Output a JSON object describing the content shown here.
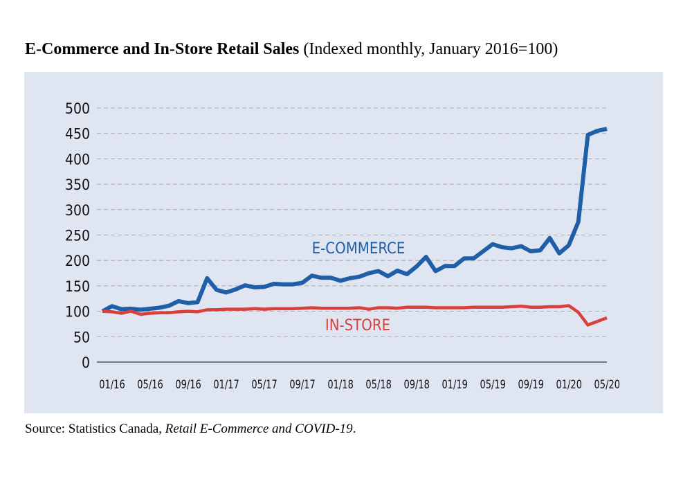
{
  "chart_data": {
    "type": "line",
    "title": "E-Commerce and In-Store Retail Sales",
    "subtitle": "(Indexed monthly, January 2016=100)",
    "source": [
      "Source: Statistics Canada, ",
      "Retail E-Commerce and COVID-19",
      "."
    ],
    "categories": [
      "01/16",
      null,
      null,
      null,
      "05/16",
      null,
      null,
      null,
      "09/16",
      null,
      null,
      null,
      "01/17",
      null,
      null,
      null,
      "05/17",
      null,
      null,
      null,
      "09/17",
      null,
      null,
      null,
      "01/18",
      null,
      null,
      null,
      "05/18",
      null,
      null,
      null,
      "09/18",
      null,
      null,
      null,
      "01/19",
      null,
      null,
      null,
      "05/19",
      null,
      null,
      null,
      "09/19",
      null,
      null,
      null,
      "01/20",
      null,
      null,
      null,
      "05/20",
      null
    ],
    "series": [
      {
        "name": "E-COMMERCE",
        "color": "#1f5fa8",
        "values": [
          100,
          110,
          104,
          105,
          103,
          105,
          107,
          111,
          120,
          116,
          118,
          165,
          142,
          137,
          143,
          151,
          147,
          148,
          154,
          153,
          153,
          156,
          170,
          166,
          166,
          160,
          165,
          168,
          175,
          179,
          169,
          180,
          173,
          188,
          207,
          179,
          189,
          189,
          204,
          204,
          218,
          232,
          226,
          224,
          228,
          218,
          220,
          244,
          214,
          230,
          276,
          447,
          455,
          459
        ]
      },
      {
        "name": "IN-STORE",
        "color": "#d9403a",
        "values": [
          100,
          99,
          96,
          100,
          94,
          96,
          97,
          97,
          99,
          100,
          99,
          103,
          103,
          104,
          104,
          104,
          105,
          104,
          105,
          105,
          105,
          106,
          107,
          106,
          106,
          106,
          106,
          107,
          104,
          107,
          107,
          106,
          108,
          108,
          108,
          107,
          107,
          107,
          107,
          108,
          108,
          108,
          108,
          109,
          110,
          108,
          108,
          109,
          109,
          111,
          98,
          73,
          80,
          87
        ]
      }
    ],
    "ylim": [
      0,
      500
    ],
    "yticks": [
      0,
      50,
      100,
      150,
      200,
      250,
      300,
      350,
      400,
      450,
      500
    ],
    "grid": true
  }
}
